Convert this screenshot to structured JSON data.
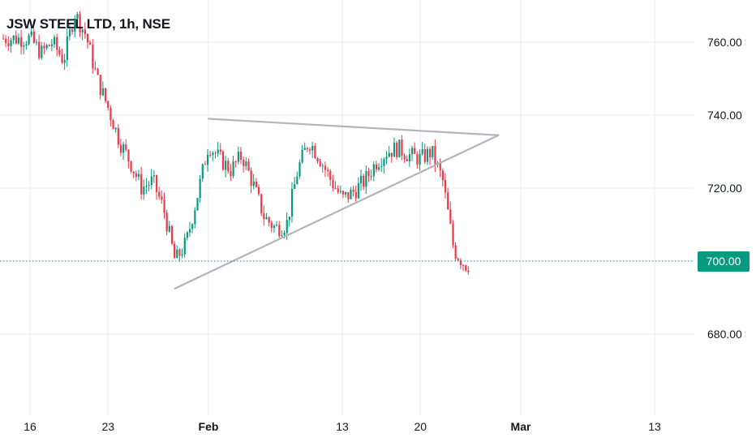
{
  "header": {
    "title": "JSW STEEL LTD, 1h, NSE"
  },
  "colors": {
    "up": "#089981",
    "down": "#f23645",
    "grid": "#e9ebf0",
    "text": "#131722",
    "trendline": "#b2b5be",
    "price_line": "#089981"
  },
  "last_price": "700.00",
  "chart_data": {
    "type": "candlestick",
    "timeframe": "1h",
    "title": "JSW STEEL LTD, 1h, NSE",
    "ylim": [
      662,
      772
    ],
    "y_ticks": [
      "760.00",
      "740.00",
      "720.00",
      "700.00",
      "680.00"
    ],
    "x_ticks": [
      "16",
      "23",
      "Feb",
      "13",
      "20",
      "Mar",
      "13"
    ],
    "current_price": 700.0,
    "grid": true,
    "close_path": [
      [
        "16 Jan",
        761
      ],
      [
        "17 Jan",
        757
      ],
      [
        "18 Jan",
        760
      ],
      [
        "19 Jan",
        755
      ],
      [
        "20 Jan",
        768
      ],
      [
        "21 Jan",
        762
      ],
      [
        "22 Jan",
        750
      ],
      [
        "23 Jan",
        742
      ],
      [
        "24 Jan",
        733
      ],
      [
        "25 Jan",
        727
      ],
      [
        "26 Jan",
        720
      ],
      [
        "27 Jan",
        722
      ],
      [
        "28 Jan",
        714
      ],
      [
        "29 Jan",
        700
      ],
      [
        "30 Jan",
        705
      ],
      [
        "31 Jan",
        718
      ],
      [
        "1 Feb",
        732
      ],
      [
        "2 Feb",
        728
      ],
      [
        "3 Feb",
        725
      ],
      [
        "4 Feb",
        729
      ],
      [
        "5 Feb",
        721
      ],
      [
        "6 Feb",
        712
      ],
      [
        "7 Feb",
        709
      ],
      [
        "8 Feb",
        710
      ],
      [
        "9 Feb",
        725
      ],
      [
        "10 Feb",
        733
      ],
      [
        "11 Feb",
        728
      ],
      [
        "12 Feb",
        722
      ],
      [
        "13 Feb",
        717
      ],
      [
        "14 Feb",
        719
      ],
      [
        "15 Feb",
        722
      ],
      [
        "16 Feb",
        727
      ],
      [
        "17 Feb",
        730
      ],
      [
        "18 Feb",
        731
      ],
      [
        "19 Feb",
        729
      ],
      [
        "20 Feb",
        728
      ],
      [
        "21 Feb",
        730
      ],
      [
        "22 Feb",
        722
      ],
      [
        "23 Feb",
        703
      ],
      [
        "24 Feb",
        699
      ]
    ],
    "annotations": [
      {
        "type": "trendline",
        "label": "upper",
        "from": [
          "1 Feb",
          739
        ],
        "to": [
          "27 Feb",
          734.5
        ]
      },
      {
        "type": "trendline",
        "label": "lower",
        "from": [
          "29 Jan",
          692.5
        ],
        "to": [
          "27 Feb",
          734.5
        ]
      }
    ]
  }
}
